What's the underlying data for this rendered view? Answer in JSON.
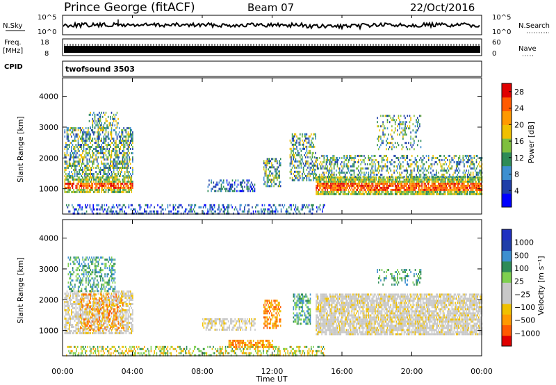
{
  "header": {
    "station": "Prince George (fitACF)",
    "beam": "Beam 07",
    "date": "22/Oct/2016"
  },
  "noise_panel": {
    "left_label": "N.Sky",
    "right_label": "N.Search",
    "left_ticks": [
      "10^5",
      "10^0"
    ],
    "right_ticks": [
      "10^5",
      "10^0"
    ]
  },
  "freq_panel": {
    "left_label_1": "Freq.",
    "left_label_2": "[MHz]",
    "right_label": "Nave",
    "left_ticks": [
      "18",
      "8"
    ],
    "right_ticks": [
      "60",
      "0"
    ]
  },
  "cpid_panel": {
    "label": "CPID",
    "value": "twofsound 3503"
  },
  "colors": {
    "power_scale": [
      "#0000ff",
      "#1f3fa8",
      "#3d8fd0",
      "#2e8b57",
      "#7fbf3f",
      "#f0c000",
      "#ff9900",
      "#ff5a00",
      "#e00000"
    ],
    "velocity_scale": [
      "#e00000",
      "#ff5a00",
      "#ff9900",
      "#f0c000",
      "#c8c8c8",
      "#c8c8c8",
      "#7fd050",
      "#2e8b57",
      "#3d8fd0",
      "#1f3fa8",
      "#2030c0"
    ]
  },
  "chart_data": [
    {
      "type": "heatmap",
      "panel": "power",
      "ylabel": "Slant Range [km]",
      "yticks": [
        "1000",
        "2000",
        "3000",
        "4000"
      ],
      "ylim": [
        180,
        4600
      ],
      "xlim_hours": [
        0,
        24
      ],
      "colorbar_label": "Power [dB]",
      "colorbar_ticks": [
        "4",
        "8",
        "12",
        "16",
        "20",
        "24",
        "28"
      ],
      "colorbar_range": [
        0,
        30
      ]
    },
    {
      "type": "heatmap",
      "panel": "velocity",
      "ylabel": "Slant Range [km]",
      "yticks": [
        "1000",
        "2000",
        "3000",
        "4000"
      ],
      "ylim": [
        180,
        4600
      ],
      "xlim_hours": [
        0,
        24
      ],
      "xlabel": "Time UT",
      "xticks": [
        "00:00",
        "04:00",
        "08:00",
        "12:00",
        "16:00",
        "20:00",
        "00:00"
      ],
      "colorbar_label": "Velocity [m s⁻¹]",
      "colorbar_ticks": [
        "1000",
        "500",
        "100",
        "25",
        "−25",
        "−100",
        "−500",
        "−1000"
      ]
    }
  ]
}
